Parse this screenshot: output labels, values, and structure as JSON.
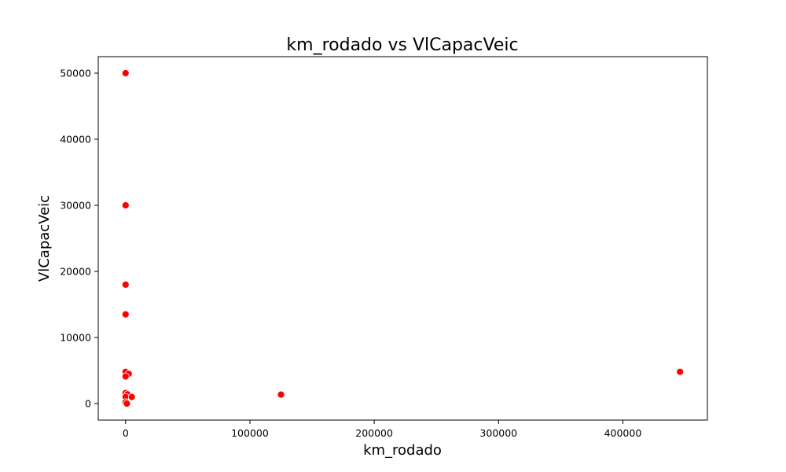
{
  "chart_data": {
    "type": "scatter",
    "title": "km_rodado vs VlCapacVeic",
    "xlabel": "km_rodado",
    "ylabel": "VlCapacVeic",
    "xlim": [
      -22000,
      468000
    ],
    "ylim": [
      -2500,
      52500
    ],
    "x_ticks": [
      0,
      100000,
      200000,
      300000,
      400000
    ],
    "y_ticks": [
      0,
      10000,
      20000,
      30000,
      40000,
      50000
    ],
    "grid": false,
    "legend": "none",
    "colors": {
      "point": "#ff0000",
      "point_edge": "#ffffff",
      "axes": "#000000"
    },
    "points": [
      {
        "x": 0,
        "y": 50000
      },
      {
        "x": 0,
        "y": 30000
      },
      {
        "x": 0,
        "y": 18000
      },
      {
        "x": 0,
        "y": 13500
      },
      {
        "x": 0,
        "y": 4800
      },
      {
        "x": 2500,
        "y": 4500
      },
      {
        "x": 0,
        "y": 4100
      },
      {
        "x": 0,
        "y": 1600
      },
      {
        "x": 1500,
        "y": 1400
      },
      {
        "x": 0,
        "y": 1000
      },
      {
        "x": 5000,
        "y": 1000
      },
      {
        "x": 0,
        "y": 200
      },
      {
        "x": 1000,
        "y": 0
      },
      {
        "x": 125000,
        "y": 1350
      },
      {
        "x": 446000,
        "y": 4800
      }
    ]
  }
}
